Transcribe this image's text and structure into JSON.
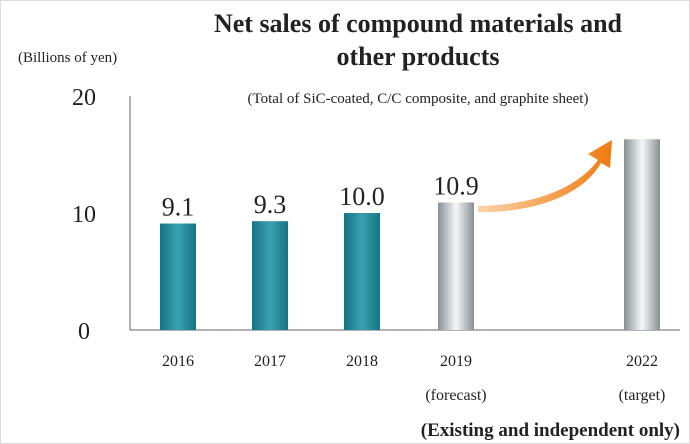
{
  "chart_data": {
    "type": "bar",
    "title": [
      "Net sales of compound materials and",
      "other products"
    ],
    "subtitle": "(Total of  SiC-coated, C/C composite, and graphite sheet)",
    "ylabel": "(Billions of yen)",
    "note": "(Existing and independent only)",
    "categories": [
      "2016",
      "2017",
      "2018",
      "2019\n(forecast)",
      "2022\n(target)"
    ],
    "values": [
      9.1,
      9.3,
      10.0,
      10.9,
      16.3
    ],
    "value_labels": [
      "9.1",
      "9.3",
      "10.0",
      "10.9",
      null
    ],
    "colors": [
      "#147585",
      "#147585",
      "#147585",
      "#8a8f94",
      "#8a8f94"
    ],
    "ylim": [
      0,
      20
    ],
    "yticks": [
      0,
      10,
      20
    ]
  }
}
